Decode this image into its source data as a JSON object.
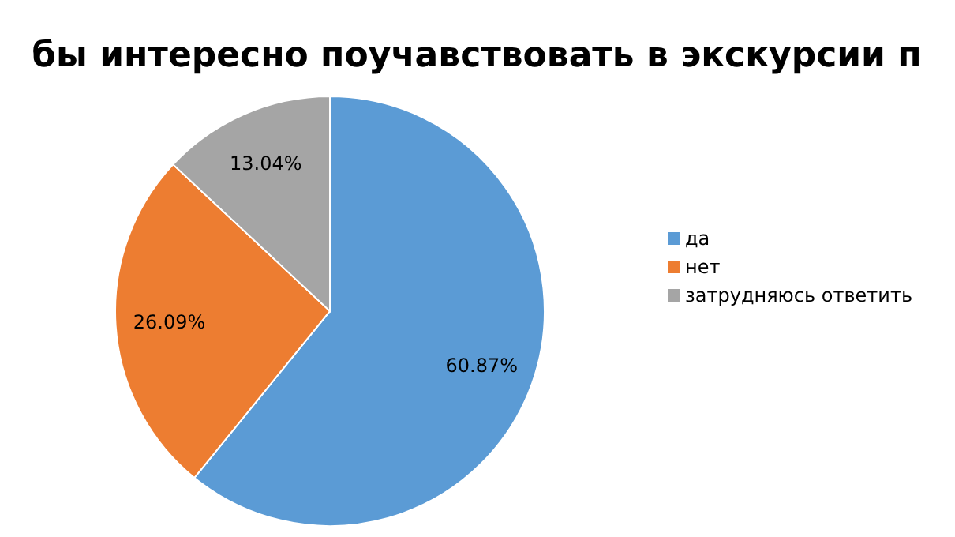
{
  "chart_data": {
    "type": "pie",
    "title": "бы интересно поучавствовать в экскурсии п",
    "categories": [
      "да",
      "нет",
      "затрудняюсь ответить"
    ],
    "values": [
      60.87,
      26.09,
      13.04
    ],
    "colors": [
      "#5b9bd5",
      "#ed7d31",
      "#a5a5a5"
    ],
    "value_labels": [
      "60.87%",
      "26.09%",
      "13.04%"
    ],
    "legend": "right"
  }
}
